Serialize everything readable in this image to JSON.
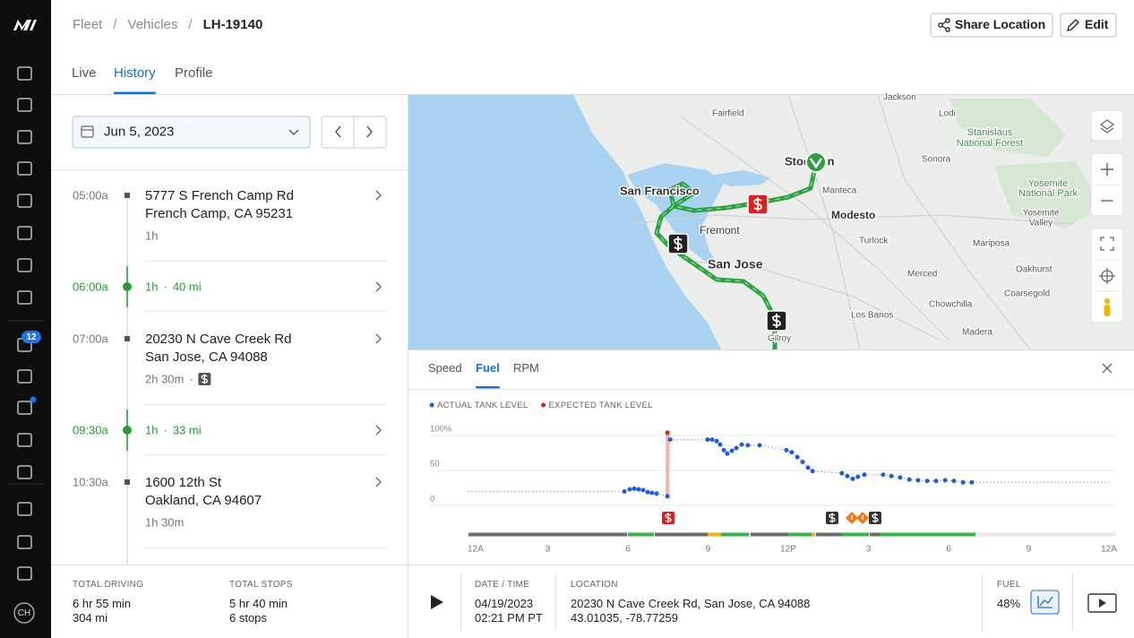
{
  "sidebar": {
    "badge": "12",
    "user_initials": "CH"
  },
  "header": {
    "breadcrumb": [
      "Fleet",
      "Vehicles",
      "LH-19140"
    ],
    "breadcrumb_separator": "/",
    "actions": [
      "Share Location",
      "Edit"
    ]
  },
  "tabs": {
    "items": [
      "Live",
      "History",
      "Profile"
    ],
    "active": 1
  },
  "date_picker": {
    "date": "Jun 5, 2023"
  },
  "timeline_separator": "·",
  "timeline": [
    {
      "time": "05:00a",
      "address": "5777 S French Camp Rd",
      "city": "French Camp, CA 95231",
      "duration": "1h"
    },
    {
      "time": "06:00a",
      "duration": "1h",
      "distance": "40 mi"
    },
    {
      "time": "07:00a",
      "address": "20230 N Cave Creek Rd",
      "city": "San Jose, CA 94088",
      "duration": "2h 30m",
      "fuel_stop": true
    },
    {
      "time": "09:30a",
      "duration": "1h",
      "distance": "33 mi"
    },
    {
      "time": "10:30a",
      "address": "1600 12th St",
      "city": "Oakland, CA 94607",
      "duration": "1h 30m"
    }
  ],
  "map": {
    "labels": [
      "Jackson",
      "Fairfield",
      "Lodi",
      "Stanislaus",
      "National Forest",
      "Stockton",
      "Sonora",
      "San Francisco",
      "Manteca",
      "Yosemite",
      "National Park",
      "Modesto",
      "Fremont",
      "Yosemite",
      "Valley",
      "Turlock",
      "San Jose",
      "Mariposa",
      "Merced",
      "Oakhurst",
      "Coarsegold",
      "Chowchilla",
      "Los Banos",
      "Madera",
      "Gilroy"
    ]
  },
  "fuel_chart": {
    "tabs": [
      "Speed",
      "Fuel",
      "RPM"
    ],
    "active_tab": 1,
    "type": "scatter",
    "series": [
      {
        "name": "ACTUAL TANK LEVEL",
        "color": "#1f5fd6",
        "x": [
          5.87,
          6.07,
          6.24,
          6.4,
          6.57,
          6.74,
          6.9,
          7.07,
          7.48,
          7.58,
          8.98,
          9.15,
          9.32,
          9.45,
          9.59,
          9.72,
          9.89,
          10.06,
          10.26,
          10.49,
          10.93,
          11.93,
          12.13,
          12.34,
          12.54,
          12.74,
          12.91,
          14.01,
          14.21,
          14.41,
          14.61,
          14.85,
          15.55,
          15.86,
          16.19,
          16.53,
          16.86,
          17.2,
          17.53,
          17.87,
          18.2,
          18.54,
          18.87
        ],
        "values": [
          20,
          23,
          24,
          23,
          22,
          19,
          18,
          17,
          13,
          94,
          94,
          94,
          92,
          87,
          79,
          74,
          78,
          82,
          87,
          86,
          86,
          79,
          76,
          69,
          62,
          54,
          49,
          46,
          42,
          38,
          41,
          44,
          44,
          42,
          40,
          37,
          36,
          35,
          35,
          36,
          35,
          33,
          33
        ]
      },
      {
        "name": "EXPECTED TANK LEVEL",
        "color": "#e01e1e",
        "x": [
          7.48
        ],
        "values": [
          104
        ]
      }
    ],
    "xlim": [
      0,
      24
    ],
    "xticks": [
      {
        "value": 0,
        "label": "12A"
      },
      3,
      6,
      9,
      {
        "value": 12,
        "label": "12P"
      },
      {
        "value": 15,
        "label": "3"
      },
      {
        "value": 18,
        "label": "6"
      },
      {
        "value": 21,
        "label": "9"
      },
      {
        "value": 24,
        "label": "12A"
      }
    ],
    "ylim": [
      -5,
      114
    ],
    "yticks": [
      0,
      50,
      {
        "value": 100,
        "label": "100%"
      }
    ],
    "grid": true
  },
  "summary": {
    "total_driving": {
      "label": "TOTAL DRIVING",
      "lines": [
        "6 hr 55 min",
        "304 mi"
      ]
    },
    "total_stops": {
      "label": "TOTAL STOPS",
      "lines": [
        "5 hr 40 min",
        "6 stops"
      ]
    }
  },
  "playback": {
    "date_time": {
      "label": "DATE / TIME",
      "lines": [
        "04/19/2023",
        "02:21 PM PT"
      ]
    },
    "location": {
      "label": "LOCATION",
      "lines": [
        "20230 N Cave Creek Rd, San Jose, CA 94088",
        "43.01035, -78.77259"
      ]
    },
    "fuel": {
      "label": "FUEL",
      "value": "48%"
    }
  }
}
